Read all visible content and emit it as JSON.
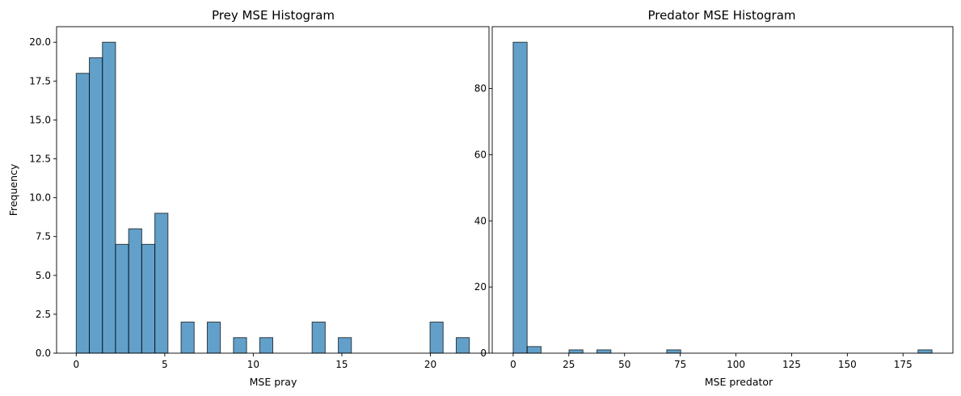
{
  "chart_data": [
    {
      "type": "bar",
      "title": "Prey MSE Histogram",
      "xlabel": "MSE pray",
      "ylabel": "Frequency",
      "xlim": [
        -1.11,
        23.31
      ],
      "ylim": [
        0,
        21
      ],
      "xticks": [
        0,
        5,
        10,
        15,
        20
      ],
      "xtick_labels": [
        "0",
        "5",
        "10",
        "15",
        "20"
      ],
      "yticks": [
        0,
        2.5,
        5,
        7.5,
        10,
        12.5,
        15,
        17.5,
        20
      ],
      "ytick_labels": [
        "0.0",
        "2.5",
        "5.0",
        "7.5",
        "10.0",
        "12.5",
        "15.0",
        "17.5",
        "20.0"
      ],
      "bins": [
        {
          "x0": 0.0,
          "x1": 0.74,
          "count": 18
        },
        {
          "x0": 0.74,
          "x1": 1.48,
          "count": 19
        },
        {
          "x0": 1.48,
          "x1": 2.22,
          "count": 20
        },
        {
          "x0": 2.22,
          "x1": 2.96,
          "count": 7
        },
        {
          "x0": 2.96,
          "x1": 3.7,
          "count": 8
        },
        {
          "x0": 3.7,
          "x1": 4.44,
          "count": 7
        },
        {
          "x0": 4.44,
          "x1": 5.18,
          "count": 9
        },
        {
          "x0": 5.92,
          "x1": 6.66,
          "count": 2
        },
        {
          "x0": 7.4,
          "x1": 8.14,
          "count": 2
        },
        {
          "x0": 8.88,
          "x1": 9.62,
          "count": 1
        },
        {
          "x0": 10.36,
          "x1": 11.1,
          "count": 1
        },
        {
          "x0": 13.32,
          "x1": 14.06,
          "count": 2
        },
        {
          "x0": 14.8,
          "x1": 15.54,
          "count": 1
        },
        {
          "x0": 19.98,
          "x1": 20.72,
          "count": 2
        },
        {
          "x0": 21.46,
          "x1": 22.2,
          "count": 1
        }
      ],
      "bar_color": "#1f77b4",
      "bar_alpha": 0.7,
      "edge_color": "#000000"
    },
    {
      "type": "bar",
      "title": "Predator MSE Histogram",
      "xlabel": "MSE predator",
      "ylabel": "",
      "xlim": [
        -9.4,
        197.4
      ],
      "ylim": [
        0,
        98.7
      ],
      "xticks": [
        0,
        25,
        50,
        75,
        100,
        125,
        150,
        175
      ],
      "xtick_labels": [
        "0",
        "25",
        "50",
        "75",
        "100",
        "125",
        "150",
        "175"
      ],
      "yticks": [
        0,
        20,
        40,
        60,
        80
      ],
      "ytick_labels": [
        "0",
        "20",
        "40",
        "60",
        "80"
      ],
      "bins": [
        {
          "x0": 0.0,
          "x1": 6.27,
          "count": 94
        },
        {
          "x0": 6.27,
          "x1": 12.53,
          "count": 2
        },
        {
          "x0": 25.07,
          "x1": 31.33,
          "count": 1
        },
        {
          "x0": 37.6,
          "x1": 43.87,
          "count": 1
        },
        {
          "x0": 68.93,
          "x1": 75.2,
          "count": 1
        },
        {
          "x0": 181.73,
          "x1": 188.0,
          "count": 1
        }
      ],
      "bar_color": "#1f77b4",
      "bar_alpha": 0.7,
      "edge_color": "#000000"
    }
  ]
}
